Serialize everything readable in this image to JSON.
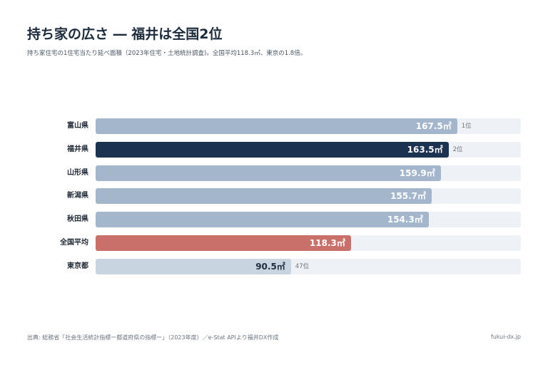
{
  "title": "持ち家の広さ ― 福井は全国2位",
  "subtitle": "持ち家住宅の1住宅当たり延べ面積（2023年住宅・土地統計調査)。全国平均118.3㎡、東京の1.8倍。",
  "source": "出典: 総務省「社会生活統計指標ー都道府県の指標ー」（2023年度）／e-Stat APIより福井DX作成",
  "site": "fukui-dx.jp",
  "colors": {
    "default_bar": "#a3b6cc",
    "highlight_bar": "#1b3251",
    "average_bar": "#c9706a",
    "tokyo_bar": "#c9d4e1",
    "track": "#eef1f5"
  },
  "chart_data": {
    "type": "bar",
    "orientation": "horizontal",
    "unit": "㎡",
    "xlim": [
      0,
      197
    ],
    "categories": [
      "富山県",
      "福井県",
      "山形県",
      "新潟県",
      "秋田県",
      "全国平均",
      "東京都"
    ],
    "values": [
      167.5,
      163.5,
      159.9,
      155.7,
      154.3,
      118.3,
      90.5
    ],
    "value_labels": [
      "167.5㎡",
      "163.5㎡",
      "159.9㎡",
      "155.7㎡",
      "154.3㎡",
      "118.3㎡",
      "90.5㎡"
    ],
    "rank_labels": [
      "1位",
      "2位",
      "",
      "",
      "",
      "",
      "47位"
    ],
    "bar_roles": [
      "default",
      "highlight",
      "default",
      "default",
      "default",
      "average",
      "tokyo"
    ]
  }
}
